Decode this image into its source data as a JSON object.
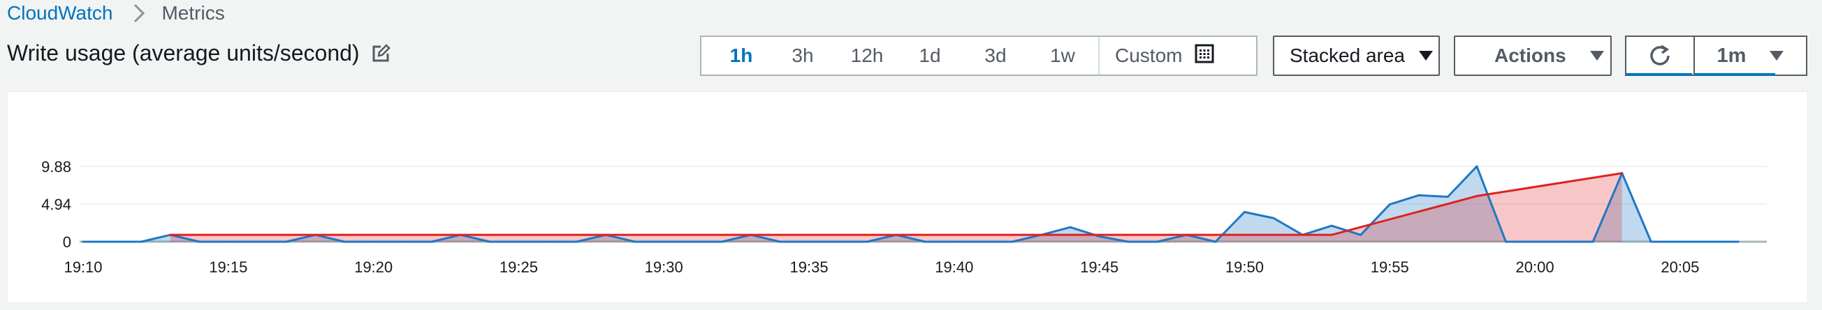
{
  "breadcrumb": {
    "root": "CloudWatch",
    "current": "Metrics"
  },
  "title": "Write usage (average units/second)",
  "time_ranges": [
    "1h",
    "3h",
    "12h",
    "1d",
    "3d",
    "1w"
  ],
  "active_time_range": "1h",
  "custom_label": "Custom",
  "chart_type_label": "Stacked area",
  "actions_label": "Actions",
  "period_label": "1m",
  "colors": {
    "accent": "#0073bb",
    "series_blue": "#1f77c4",
    "series_red": "#e02020"
  },
  "chart_data": {
    "type": "area",
    "stacked": true,
    "title": "",
    "xlabel": "",
    "ylabel": "",
    "x_ticks": [
      "19:10",
      "19:15",
      "19:20",
      "19:25",
      "19:30",
      "19:35",
      "19:40",
      "19:45",
      "19:50",
      "19:55",
      "20:00",
      "20:05"
    ],
    "y_ticks": [
      "0",
      "4.94",
      "9.88"
    ],
    "ylim": [
      0,
      10.5
    ],
    "grid": true,
    "series": [
      {
        "color": "#1f77c4",
        "points": [
          [
            "19:10",
            0
          ],
          [
            "19:11",
            0
          ],
          [
            "19:12",
            0
          ],
          [
            "19:13",
            0.9
          ],
          [
            "19:14",
            0
          ],
          [
            "19:15",
            0
          ],
          [
            "19:16",
            0
          ],
          [
            "19:17",
            0
          ],
          [
            "19:18",
            0.9
          ],
          [
            "19:19",
            0
          ],
          [
            "19:20",
            0
          ],
          [
            "19:21",
            0
          ],
          [
            "19:22",
            0
          ],
          [
            "19:23",
            0.9
          ],
          [
            "19:24",
            0
          ],
          [
            "19:25",
            0
          ],
          [
            "19:26",
            0
          ],
          [
            "19:27",
            0
          ],
          [
            "19:28",
            0.9
          ],
          [
            "19:29",
            0
          ],
          [
            "19:30",
            0
          ],
          [
            "19:31",
            0
          ],
          [
            "19:32",
            0
          ],
          [
            "19:33",
            0.9
          ],
          [
            "19:34",
            0
          ],
          [
            "19:35",
            0
          ],
          [
            "19:36",
            0
          ],
          [
            "19:37",
            0
          ],
          [
            "19:38",
            0.9
          ],
          [
            "19:39",
            0
          ],
          [
            "19:40",
            0
          ],
          [
            "19:41",
            0
          ],
          [
            "19:42",
            0
          ],
          [
            "19:43",
            0.9
          ],
          [
            "19:44",
            1.9
          ],
          [
            "19:45",
            0.7
          ],
          [
            "19:46",
            0
          ],
          [
            "19:47",
            0
          ],
          [
            "19:48",
            0.9
          ],
          [
            "19:49",
            0
          ],
          [
            "19:50",
            3.9
          ],
          [
            "19:51",
            3.1
          ],
          [
            "19:52",
            0.9
          ],
          [
            "19:53",
            2.1
          ],
          [
            "19:54",
            0.9
          ],
          [
            "19:55",
            4.9
          ],
          [
            "19:56",
            6.1
          ],
          [
            "19:57",
            5.9
          ],
          [
            "19:58",
            9.9
          ],
          [
            "19:59",
            0
          ],
          [
            "20:00",
            0
          ],
          [
            "20:01",
            0
          ],
          [
            "20:02",
            0
          ],
          [
            "20:03",
            9.0
          ],
          [
            "20:04",
            0
          ],
          [
            "20:05",
            0
          ],
          [
            "20:06",
            0
          ],
          [
            "20:07",
            0
          ]
        ]
      },
      {
        "color": "#e02020",
        "points": [
          [
            "19:13",
            0.9
          ],
          [
            "19:53",
            0.9
          ],
          [
            "19:58",
            6.0
          ],
          [
            "20:03",
            9.0
          ]
        ]
      }
    ]
  }
}
